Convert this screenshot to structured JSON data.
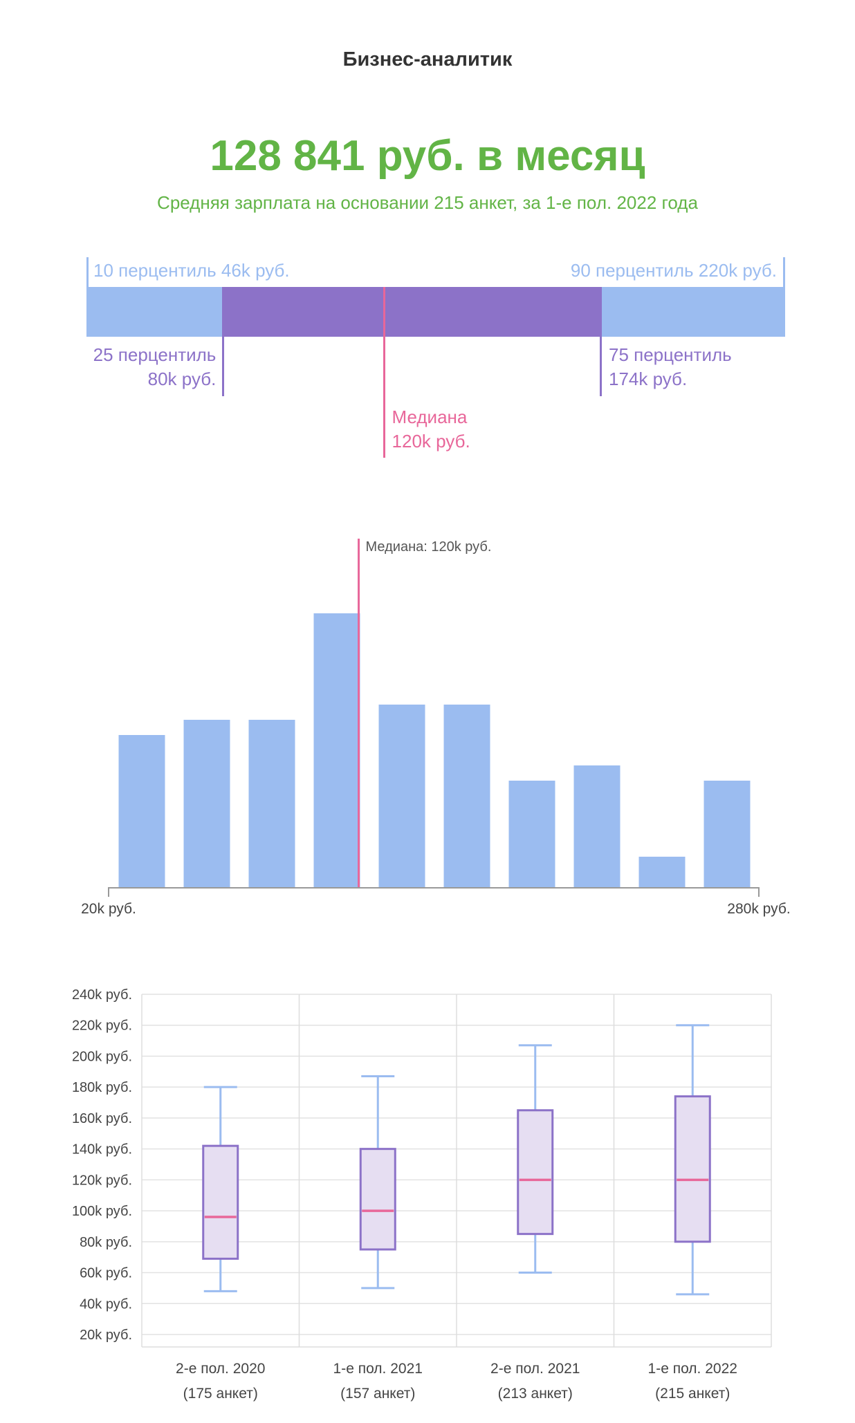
{
  "header": {
    "title": "Бизнес-аналитик",
    "salary": "128 841 руб. в месяц",
    "subtitle": "Средняя зарплата на основании 215 анкет, за 1-е пол. 2022 года"
  },
  "percentiles": {
    "scale_min": 46,
    "scale_max": 220,
    "p10": {
      "value": 46,
      "label": "10 перцентиль 46k руб."
    },
    "p25": {
      "value": 80,
      "line1": "25 перцентиль",
      "line2": "80k руб."
    },
    "median": {
      "value": 120,
      "line1": "Медиана",
      "line2": "120k руб."
    },
    "p75": {
      "value": 174,
      "line1": "75 перцентиль",
      "line2": "174k руб."
    },
    "p90": {
      "value": 220,
      "label": "90 перцентиль 220k руб."
    }
  },
  "colors": {
    "blue": "#9bbcf0",
    "purple": "#8c72c8",
    "pink": "#e8679a",
    "green": "#62b446",
    "box_fill": "#e6def2"
  },
  "chart_data": [
    {
      "type": "bar",
      "xlim": [
        20,
        280
      ],
      "x_labels": [
        "20k руб.",
        "280k руб."
      ],
      "values": [
        10,
        11,
        11,
        18,
        12,
        12,
        7,
        8,
        2,
        7
      ],
      "median": {
        "value": 120,
        "label": "Медиана: 120k руб."
      }
    },
    {
      "type": "box",
      "ylim": [
        20,
        240
      ],
      "y_ticks": [
        20,
        40,
        60,
        80,
        100,
        120,
        140,
        160,
        180,
        200,
        220,
        240
      ],
      "y_tick_labels": [
        "20k руб.",
        "40k руб.",
        "60k руб.",
        "80k руб.",
        "100k руб.",
        "120k руб.",
        "140k руб.",
        "160k руб.",
        "180k руб.",
        "200k руб.",
        "220k руб.",
        "240k руб."
      ],
      "categories": [
        {
          "label": "2-е пол. 2020",
          "sublabel": "(175 анкет)",
          "min": 48,
          "q1": 69,
          "median": 96,
          "q3": 142,
          "max": 180
        },
        {
          "label": "1-е пол. 2021",
          "sublabel": "(157 анкет)",
          "min": 50,
          "q1": 75,
          "median": 100,
          "q3": 140,
          "max": 187
        },
        {
          "label": "2-е пол. 2021",
          "sublabel": "(213 анкет)",
          "min": 60,
          "q1": 85,
          "median": 120,
          "q3": 165,
          "max": 207
        },
        {
          "label": "1-е пол. 2022",
          "sublabel": "(215 анкет)",
          "min": 46,
          "q1": 80,
          "median": 120,
          "q3": 174,
          "max": 220
        }
      ]
    }
  ]
}
